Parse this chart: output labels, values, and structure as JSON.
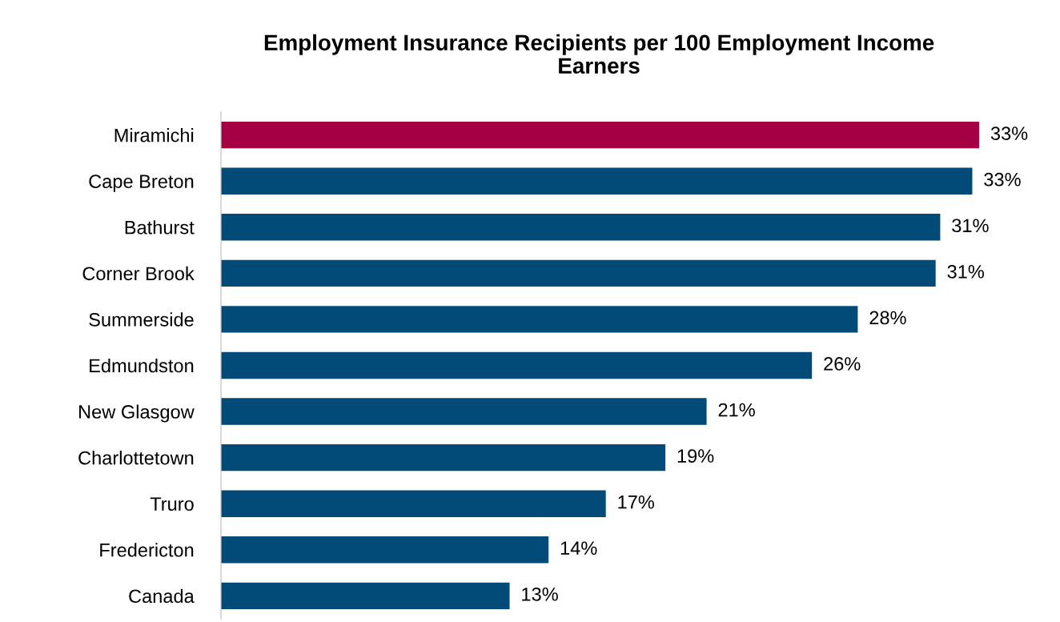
{
  "chart_data": {
    "type": "bar",
    "orientation": "horizontal",
    "title": "Employment Insurance Recipients per 100 Employment Income\nEarners",
    "categories": [
      "Miramichi",
      "Cape Breton",
      "Bathurst",
      "Corner Brook",
      "Summerside",
      "Edmundston",
      "New Glasgow",
      "Charlottetown",
      "Truro",
      "Fredericton",
      "Canada"
    ],
    "values": [
      33.1,
      32.8,
      31.4,
      31.2,
      27.8,
      25.8,
      21.2,
      19.4,
      16.8,
      14.3,
      12.6
    ],
    "value_labels": [
      "33%",
      "33%",
      "31%",
      "31%",
      "28%",
      "26%",
      "21%",
      "19%",
      "17%",
      "14%",
      "13%"
    ],
    "colors": [
      "#a50044",
      "#024a77",
      "#024a77",
      "#024a77",
      "#024a77",
      "#024a77",
      "#024a77",
      "#024a77",
      "#024a77",
      "#024a77",
      "#024a77"
    ],
    "tick_labels": "y",
    "grid": false,
    "legend": false
  }
}
